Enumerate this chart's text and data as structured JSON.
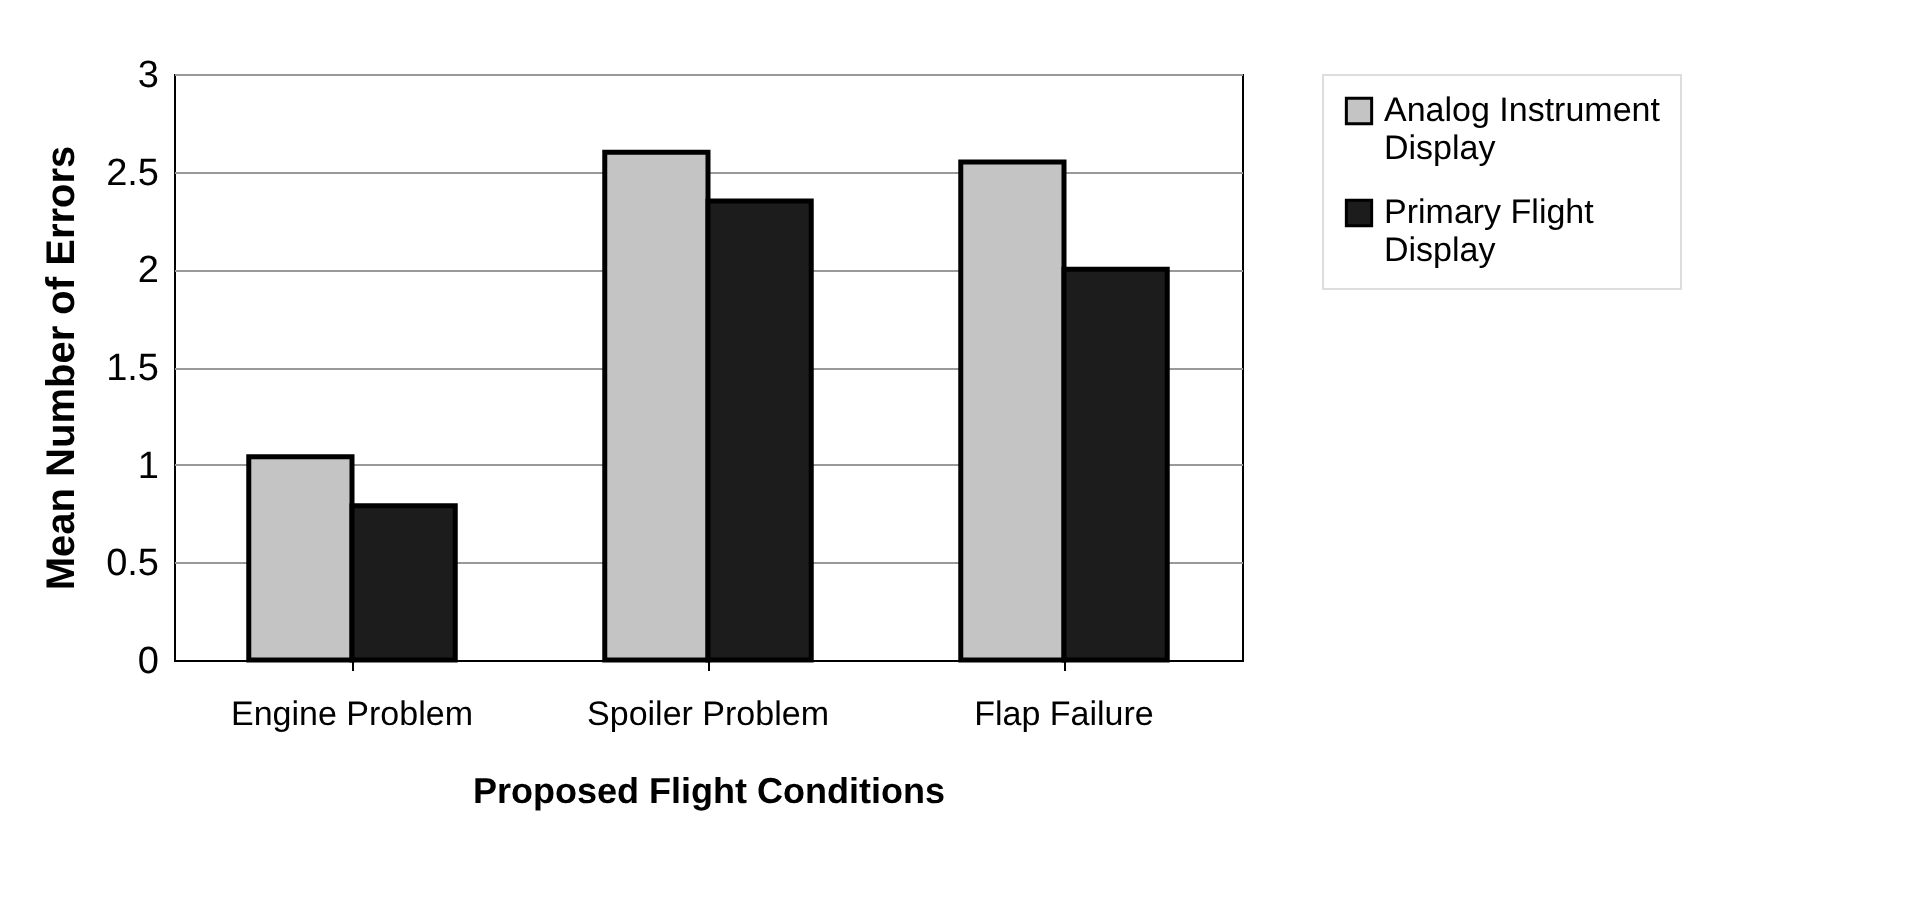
{
  "chart_data": {
    "type": "bar",
    "xlabel": "Proposed Flight Conditions",
    "ylabel": "Mean Number of Errors",
    "categories": [
      "Engine Problem",
      "Spoiler Problem",
      "Flap Failure"
    ],
    "series": [
      {
        "name": "Analog Instrument Display",
        "color": "#c4c4c4",
        "values": [
          1.04,
          2.6,
          2.55
        ]
      },
      {
        "name": "Primary Flight Display",
        "color": "#1c1c1c",
        "values": [
          0.79,
          2.35,
          2.0
        ]
      }
    ],
    "ylim": [
      0,
      3
    ],
    "yticks": [
      0,
      0.5,
      1,
      1.5,
      2,
      2.5,
      3
    ],
    "grid": "y",
    "legend": "right"
  }
}
